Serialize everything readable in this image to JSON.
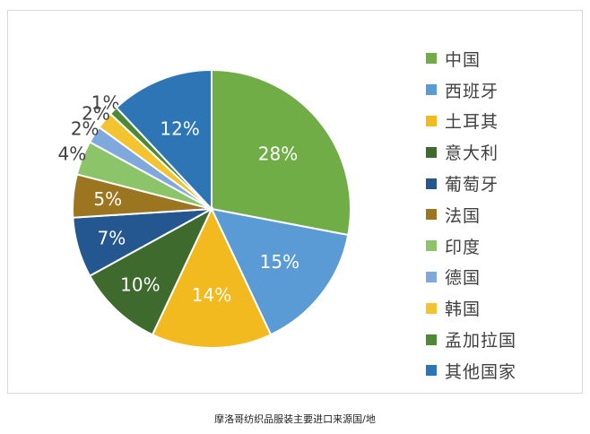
{
  "chart_data": {
    "type": "pie",
    "categories": [
      "中国",
      "西班牙",
      "土耳其",
      "意大利",
      "葡萄牙",
      "法国",
      "印度",
      "德国",
      "韩国",
      "孟加拉国",
      "其他国家"
    ],
    "values": [
      28,
      15,
      14,
      10,
      7,
      5,
      4,
      2,
      2,
      1,
      12
    ],
    "value_labels": [
      "28%",
      "15%",
      "14%",
      "10%",
      "7%",
      "5%",
      "4%",
      "2%",
      "2%",
      "1%",
      "12%"
    ],
    "colors": [
      "#70AD47",
      "#5B9BD5",
      "#F2BA1E",
      "#3E6A2E",
      "#24578F",
      "#9C7520",
      "#8CC46A",
      "#7FA9DD",
      "#F4C430",
      "#4E8A35",
      "#2E75B6"
    ],
    "legend_position": "right",
    "title": ""
  },
  "caption": "摩洛哥纺织品服装主要进口来源国/地"
}
